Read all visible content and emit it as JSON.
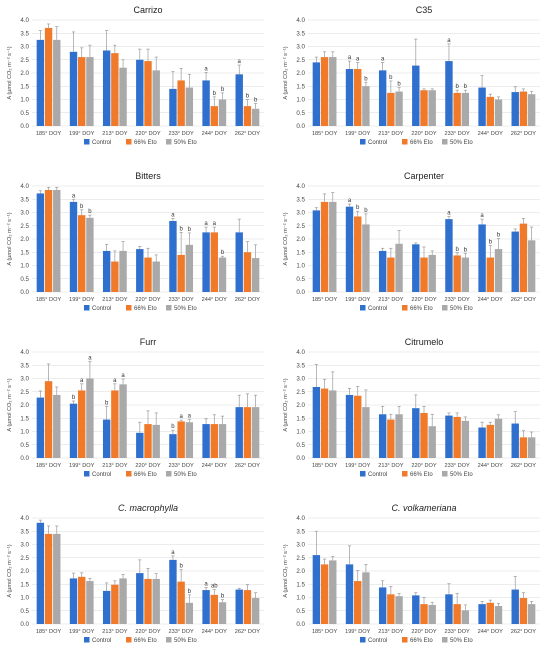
{
  "colors": {
    "Control": "#2f6fce",
    "66% Eto": "#f07a2a",
    "50% Eto": "#a9a9a9"
  },
  "shared": {
    "categories": [
      "185° DOY",
      "199° DOY",
      "213° DOY",
      "220° DOY",
      "233° DOY",
      "244° DOY",
      "262° DOY"
    ],
    "series_names": [
      "Control",
      "66% Eto",
      "50% Eto"
    ],
    "ylabel": "A (µmol CO₂ m⁻² s⁻¹)",
    "yticks": [
      "0.0",
      "0.5",
      "1.0",
      "1.5",
      "2.0",
      "2.5",
      "3.0",
      "3.5",
      "4.0"
    ]
  },
  "chart_data": [
    {
      "type": "bar",
      "title": "Carrizo",
      "italic": false,
      "ylim": [
        0,
        4
      ],
      "series": [
        {
          "name": "Control",
          "values": [
            3.25,
            2.8,
            2.85,
            2.5,
            1.4,
            1.72,
            1.95
          ],
          "err": [
            0.35,
            0.75,
            0.75,
            0.4,
            0.65,
            0.3,
            0.35
          ],
          "sig": [
            "",
            "",
            "",
            "",
            "",
            "a",
            "a"
          ]
        },
        {
          "name": "66% Eto",
          "values": [
            3.7,
            2.6,
            2.75,
            2.45,
            1.72,
            0.75,
            0.75
          ],
          "err": [
            0.15,
            0.35,
            0.3,
            0.45,
            0.45,
            0.35,
            0.25
          ],
          "sig": [
            "",
            "",
            "",
            "",
            "",
            "b",
            "b"
          ]
        },
        {
          "name": "50% Eto",
          "values": [
            3.25,
            2.6,
            2.2,
            2.1,
            1.45,
            1.0,
            0.65
          ],
          "err": [
            0.5,
            0.45,
            0.3,
            0.5,
            0.5,
            0.25,
            0.2
          ],
          "sig": [
            "",
            "",
            "",
            "",
            "",
            "b",
            "b"
          ]
        }
      ]
    },
    {
      "type": "bar",
      "title": "C35",
      "italic": false,
      "ylim": [
        0,
        4
      ],
      "series": [
        {
          "name": "Control",
          "values": [
            2.4,
            2.15,
            2.1,
            2.28,
            2.45,
            1.45,
            1.28
          ],
          "err": [
            0.2,
            0.3,
            0.3,
            1.0,
            0.65,
            0.45,
            0.2
          ],
          "sig": [
            "",
            "a",
            "a",
            "",
            "a",
            "",
            ""
          ]
        },
        {
          "name": "66% Eto",
          "values": [
            2.6,
            2.15,
            1.25,
            1.35,
            1.25,
            1.1,
            1.3
          ],
          "err": [
            0.2,
            0.25,
            0.45,
            0.05,
            0.1,
            0.1,
            0.1
          ],
          "sig": [
            "",
            "a",
            "b",
            "",
            "b",
            "",
            ""
          ]
        },
        {
          "name": "50% Eto",
          "values": [
            2.6,
            1.5,
            1.3,
            1.35,
            1.25,
            1.0,
            1.2
          ],
          "err": [
            0.2,
            0.15,
            0.15,
            0.05,
            0.1,
            0.1,
            0.1
          ],
          "sig": [
            "",
            "b",
            "b",
            "",
            "b",
            "",
            ""
          ]
        }
      ]
    },
    {
      "type": "bar",
      "title": "Bitters",
      "italic": false,
      "ylim": [
        0,
        4
      ],
      "series": [
        {
          "name": "Control",
          "values": [
            3.72,
            3.4,
            1.55,
            1.62,
            2.68,
            2.25,
            2.25
          ],
          "err": [
            0.1,
            0.1,
            0.25,
            0.1,
            0.1,
            0.2,
            0.5
          ],
          "sig": [
            "",
            "a",
            "",
            "",
            "a",
            "a",
            ""
          ]
        },
        {
          "name": "66% Eto",
          "values": [
            3.85,
            2.9,
            1.15,
            1.3,
            1.4,
            2.25,
            1.5
          ],
          "err": [
            0.1,
            0.2,
            0.4,
            0.35,
            0.85,
            0.2,
            0.4
          ],
          "sig": [
            "",
            "b",
            "",
            "",
            "b",
            "a",
            ""
          ]
        },
        {
          "name": "50% Eto",
          "values": [
            3.85,
            2.8,
            1.55,
            1.15,
            1.78,
            1.3,
            1.28
          ],
          "err": [
            0.1,
            0.1,
            0.35,
            0.25,
            0.45,
            0.05,
            0.5
          ],
          "sig": [
            "",
            "b",
            "",
            "",
            "b",
            "b",
            ""
          ]
        }
      ]
    },
    {
      "type": "bar",
      "title": "Carpenter",
      "italic": false,
      "ylim": [
        0,
        4
      ],
      "series": [
        {
          "name": "Control",
          "values": [
            3.08,
            3.22,
            1.55,
            1.8,
            2.75,
            2.55,
            2.28
          ],
          "err": [
            0.1,
            0.1,
            0.1,
            0.05,
            0.1,
            0.2,
            0.1
          ],
          "sig": [
            "",
            "a",
            "",
            "",
            "a",
            "a",
            ""
          ]
        },
        {
          "name": "66% Eto",
          "values": [
            3.4,
            2.85,
            1.3,
            1.3,
            1.38,
            1.3,
            2.58
          ],
          "err": [
            0.3,
            0.2,
            0.35,
            0.4,
            0.1,
            0.45,
            0.2
          ],
          "sig": [
            "",
            "b",
            "",
            "",
            "b",
            "b",
            ""
          ]
        },
        {
          "name": "50% Eto",
          "values": [
            3.4,
            2.55,
            1.82,
            1.4,
            1.3,
            1.62,
            1.95
          ],
          "err": [
            0.35,
            0.4,
            0.5,
            0.15,
            0.15,
            0.4,
            0.5
          ],
          "sig": [
            "",
            "b",
            "",
            "",
            "b",
            "b",
            ""
          ]
        }
      ]
    },
    {
      "type": "bar",
      "title": "Furr",
      "italic": false,
      "ylim": [
        0,
        4
      ],
      "series": [
        {
          "name": "Control",
          "values": [
            2.28,
            2.05,
            1.45,
            0.95,
            0.9,
            1.28,
            1.92
          ],
          "err": [
            0.25,
            0.1,
            0.5,
            0.4,
            0.15,
            0.2,
            0.45
          ],
          "sig": [
            "",
            "b",
            "b",
            "",
            "b",
            "",
            ""
          ]
        },
        {
          "name": "66% Eto",
          "values": [
            2.9,
            2.55,
            2.55,
            1.28,
            1.38,
            1.28,
            1.92
          ],
          "err": [
            0.65,
            0.25,
            0.25,
            0.5,
            0.05,
            0.35,
            0.5
          ],
          "sig": [
            "",
            "a",
            "a",
            "",
            "a",
            "",
            ""
          ]
        },
        {
          "name": "50% Eto",
          "values": [
            2.38,
            3.0,
            2.78,
            1.25,
            1.35,
            1.28,
            1.92
          ],
          "err": [
            0.3,
            0.65,
            0.2,
            0.45,
            0.1,
            0.3,
            0.45
          ],
          "sig": [
            "",
            "a",
            "a",
            "",
            "a",
            "",
            ""
          ]
        }
      ]
    },
    {
      "type": "bar",
      "title": "Citrumelo",
      "italic": false,
      "ylim": [
        0,
        4
      ],
      "series": [
        {
          "name": "Control",
          "values": [
            2.68,
            2.38,
            1.65,
            1.88,
            1.6,
            1.15,
            1.3
          ],
          "err": [
            0.85,
            0.25,
            0.3,
            0.5,
            0.1,
            0.2,
            0.45
          ],
          "sig": [
            "",
            "",
            "",
            "",
            "",
            "",
            ""
          ]
        },
        {
          "name": "66% Eto",
          "values": [
            2.62,
            2.35,
            1.45,
            1.7,
            1.55,
            1.25,
            0.78
          ],
          "err": [
            0.35,
            0.35,
            0.2,
            0.25,
            0.15,
            0.1,
            0.25
          ],
          "sig": [
            "",
            "",
            "",
            "",
            "",
            "",
            ""
          ]
        },
        {
          "name": "50% Eto",
          "values": [
            2.55,
            1.92,
            1.65,
            1.2,
            1.4,
            1.48,
            0.78
          ],
          "err": [
            0.7,
            0.65,
            0.3,
            0.45,
            0.15,
            0.15,
            0.2
          ],
          "sig": [
            "",
            "",
            "",
            "",
            "",
            "",
            ""
          ]
        }
      ]
    },
    {
      "type": "bar",
      "title": "C. macrophylla",
      "italic": true,
      "ylim": [
        0,
        4
      ],
      "series": [
        {
          "name": "Control",
          "values": [
            3.82,
            1.72,
            1.25,
            1.92,
            2.42,
            1.28,
            1.3
          ],
          "err": [
            0.1,
            0.2,
            0.3,
            0.5,
            0.15,
            0.1,
            0.05
          ],
          "sig": [
            "",
            "",
            "",
            "",
            "a",
            "a",
            ""
          ]
        },
        {
          "name": "66% Eto",
          "values": [
            3.4,
            1.78,
            1.48,
            1.7,
            1.6,
            1.1,
            1.28
          ],
          "err": [
            0.3,
            0.15,
            0.15,
            0.4,
            0.45,
            0.2,
            0.2
          ],
          "sig": [
            "",
            "",
            "",
            "",
            "b",
            "ab",
            ""
          ]
        },
        {
          "name": "50% Eto",
          "values": [
            3.4,
            1.62,
            1.72,
            1.7,
            0.8,
            0.82,
            0.98
          ],
          "err": [
            0.3,
            0.1,
            0.15,
            0.2,
            0.3,
            0.1,
            0.2
          ],
          "sig": [
            "",
            "",
            "",
            "",
            "b",
            "b",
            ""
          ]
        }
      ]
    },
    {
      "type": "bar",
      "title": "C. volkameriana",
      "italic": true,
      "ylim": [
        0,
        4
      ],
      "series": [
        {
          "name": "Control",
          "values": [
            2.6,
            2.25,
            1.38,
            1.08,
            1.12,
            0.75,
            1.3
          ],
          "err": [
            0.9,
            0.7,
            0.25,
            0.1,
            0.4,
            0.1,
            0.5
          ],
          "sig": [
            "",
            "",
            "",
            "",
            "",
            "",
            ""
          ]
        },
        {
          "name": "66% Eto",
          "values": [
            2.25,
            1.62,
            1.12,
            0.75,
            0.75,
            0.8,
            0.98
          ],
          "err": [
            0.2,
            0.4,
            0.3,
            0.25,
            0.4,
            0.1,
            0.2
          ],
          "sig": [
            "",
            "",
            "",
            "",
            "",
            "",
            ""
          ]
        },
        {
          "name": "50% Eto",
          "values": [
            2.4,
            1.95,
            1.05,
            0.72,
            0.52,
            0.68,
            0.75
          ],
          "err": [
            0.15,
            0.3,
            0.1,
            0.1,
            0.2,
            0.1,
            0.1
          ],
          "sig": [
            "",
            "",
            "",
            "",
            "",
            "",
            ""
          ]
        }
      ]
    }
  ]
}
